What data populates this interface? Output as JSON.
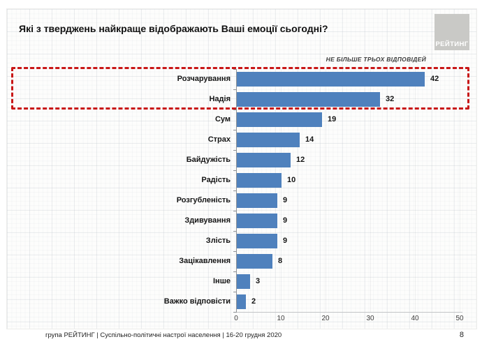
{
  "title": "Які з тверджень найкраще відображають Ваші емоції сьогодні?",
  "logo": {
    "label": "РЕЙТИНГ"
  },
  "footer": {
    "text": "група РЕЙТИНГ | Суспільно-політичні настрої населення | 16-20 грудня 2020",
    "page_number": "8"
  },
  "colors": {
    "bar": "#4F81BD",
    "highlight_border": "#C81717",
    "logo_bg": "#C9C9C6",
    "title_text": "#111111"
  },
  "chart_data": {
    "type": "bar",
    "orientation": "horizontal",
    "title": "Які з тверджень найкраще відображають Ваші емоції сьогодні?",
    "annotation": "НЕ БІЛЬШЕ ТРЬОХ ВІДПОВІДЕЙ",
    "categories": [
      "Розчарування",
      "Надія",
      "Сум",
      "Страх",
      "Байдужість",
      "Радість",
      "Розгубленість",
      "Здивування",
      "Злість",
      "Зацікавлення",
      "Інше",
      "Важко відповісти"
    ],
    "values": [
      42,
      32,
      19,
      14,
      12,
      10,
      9,
      9,
      9,
      8,
      3,
      2
    ],
    "x_ticks": [
      0,
      10,
      20,
      30,
      40,
      50
    ],
    "xlim": [
      0,
      50
    ],
    "grid": true,
    "legend": "none",
    "highlighted_categories": [
      "Розчарування",
      "Надія"
    ],
    "highlight_style": "red-dashed-box"
  }
}
